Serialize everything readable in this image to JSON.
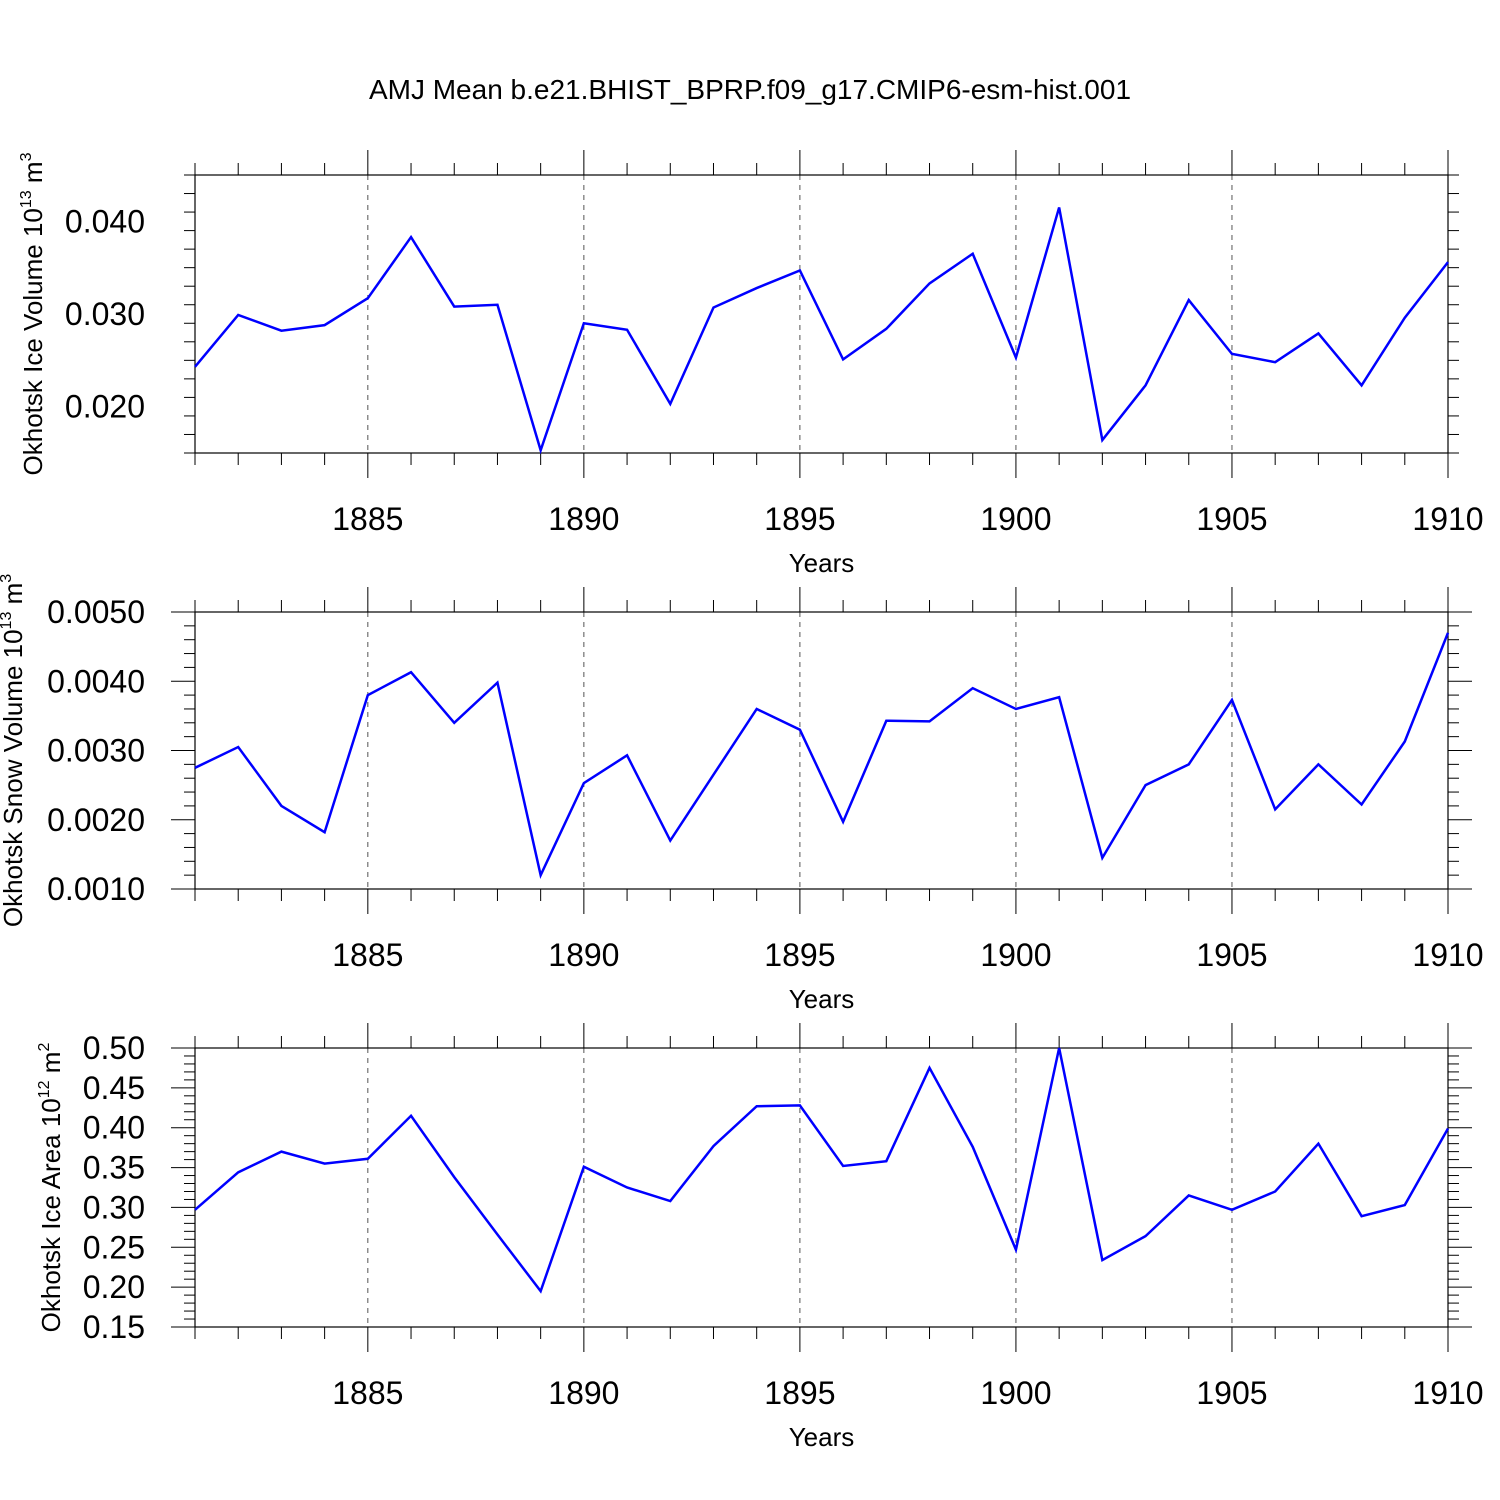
{
  "title": "AMJ Mean b.e21.BHIST_BPRP.f09_g17.CMIP6-esm-hist.001",
  "colors": {
    "line": "#0000ff",
    "axis": "#000000",
    "grid": "#555555"
  },
  "chart_data": [
    {
      "type": "line",
      "ylabel": "Okhotsk Ice Volume 10",
      "ylabel_exp": "13",
      "ylabel_unit": "m",
      "ylabel_unit_exp": "3",
      "xlabel": "Years",
      "xlim": [
        1881,
        1910
      ],
      "ylim": [
        0.015,
        0.045
      ],
      "x_ticks": [
        1885,
        1890,
        1895,
        1900,
        1905,
        1910
      ],
      "y_ticks": [
        0.02,
        0.03,
        0.04
      ],
      "y_tick_labels": [
        "0.020",
        "0.030",
        "0.040"
      ],
      "grid": "vertical dashed at labeled years",
      "x": [
        1881,
        1882,
        1883,
        1884,
        1885,
        1886,
        1887,
        1888,
        1889,
        1890,
        1891,
        1892,
        1893,
        1894,
        1895,
        1896,
        1897,
        1898,
        1899,
        1900,
        1901,
        1902,
        1903,
        1904,
        1905,
        1906,
        1907,
        1908,
        1909,
        1910
      ],
      "values": [
        0.0243,
        0.0299,
        0.0282,
        0.0288,
        0.0317,
        0.0383,
        0.0308,
        0.031,
        0.0153,
        0.029,
        0.0283,
        0.0203,
        0.0307,
        0.0328,
        0.0347,
        0.0251,
        0.0284,
        0.0333,
        0.0365,
        0.0253,
        0.0415,
        0.0164,
        0.0223,
        0.0315,
        0.0257,
        0.0248,
        0.0279,
        0.0223,
        0.0296,
        0.0356
      ]
    },
    {
      "type": "line",
      "ylabel": "Okhotsk Snow Volume 10",
      "ylabel_exp": "13",
      "ylabel_unit": "m",
      "ylabel_unit_exp": "3",
      "xlabel": "Years",
      "xlim": [
        1881,
        1910
      ],
      "ylim": [
        0.001,
        0.005
      ],
      "x_ticks": [
        1885,
        1890,
        1895,
        1900,
        1905,
        1910
      ],
      "y_ticks": [
        0.001,
        0.002,
        0.003,
        0.004,
        0.005
      ],
      "y_tick_labels": [
        "0.0010",
        "0.0020",
        "0.0030",
        "0.0040",
        "0.0050"
      ],
      "grid": "vertical dashed at labeled years",
      "x": [
        1881,
        1882,
        1883,
        1884,
        1885,
        1886,
        1887,
        1888,
        1889,
        1890,
        1891,
        1892,
        1893,
        1894,
        1895,
        1896,
        1897,
        1898,
        1899,
        1900,
        1901,
        1902,
        1903,
        1904,
        1905,
        1906,
        1907,
        1908,
        1909,
        1910
      ],
      "values": [
        0.00275,
        0.00305,
        0.0022,
        0.00182,
        0.0038,
        0.00413,
        0.0034,
        0.00398,
        0.0012,
        0.00253,
        0.00293,
        0.0017,
        0.00265,
        0.0036,
        0.0033,
        0.00197,
        0.00343,
        0.00342,
        0.0039,
        0.0036,
        0.00377,
        0.00145,
        0.0025,
        0.0028,
        0.00373,
        0.00215,
        0.0028,
        0.00222,
        0.00313,
        0.0047
      ]
    },
    {
      "type": "line",
      "ylabel": "Okhotsk Ice Area 10",
      "ylabel_exp": "12",
      "ylabel_unit": "m",
      "ylabel_unit_exp": "2",
      "xlabel": "Years",
      "xlim": [
        1881,
        1910
      ],
      "ylim": [
        0.15,
        0.5
      ],
      "x_ticks": [
        1885,
        1890,
        1895,
        1900,
        1905,
        1910
      ],
      "y_ticks": [
        0.15,
        0.2,
        0.25,
        0.3,
        0.35,
        0.4,
        0.45,
        0.5
      ],
      "y_tick_labels": [
        "0.15",
        "0.20",
        "0.25",
        "0.30",
        "0.35",
        "0.40",
        "0.45",
        "0.50"
      ],
      "grid": "vertical dashed at labeled years",
      "x": [
        1881,
        1882,
        1883,
        1884,
        1885,
        1886,
        1887,
        1888,
        1889,
        1890,
        1891,
        1892,
        1893,
        1894,
        1895,
        1896,
        1897,
        1898,
        1899,
        1900,
        1901,
        1902,
        1903,
        1904,
        1905,
        1906,
        1907,
        1908,
        1909,
        1910
      ],
      "values": [
        0.297,
        0.344,
        0.37,
        0.355,
        0.361,
        0.415,
        0.338,
        0.266,
        0.195,
        0.351,
        0.325,
        0.308,
        0.377,
        0.427,
        0.428,
        0.352,
        0.358,
        0.475,
        0.376,
        0.247,
        0.5,
        0.234,
        0.264,
        0.315,
        0.297,
        0.32,
        0.38,
        0.289,
        0.303,
        0.399
      ]
    }
  ]
}
